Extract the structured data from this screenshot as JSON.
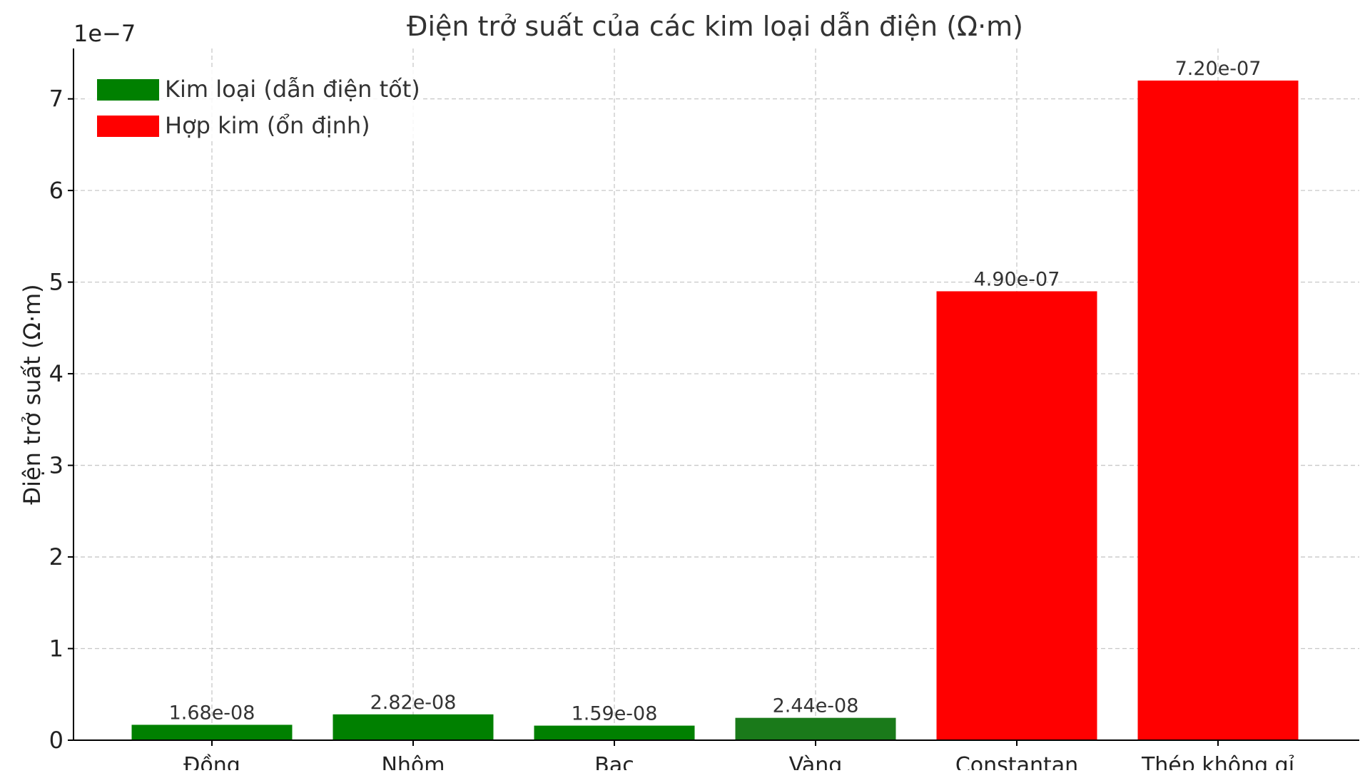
{
  "chart_data": {
    "type": "bar",
    "title": "Điện trở suất của các kim loại dẫn điện (Ω·m)",
    "xlabel": "",
    "ylabel": "Điện trở suất (Ω·m)",
    "y_multiplier_label": "1e−7",
    "ylim": [
      0,
      7.55e-07
    ],
    "y_ticks": [
      {
        "value": 0,
        "label": "0"
      },
      {
        "value": 1e-07,
        "label": "1"
      },
      {
        "value": 2e-07,
        "label": "2"
      },
      {
        "value": 3e-07,
        "label": "3"
      },
      {
        "value": 4e-07,
        "label": "4"
      },
      {
        "value": 5e-07,
        "label": "5"
      },
      {
        "value": 6e-07,
        "label": "6"
      },
      {
        "value": 7e-07,
        "label": "7"
      }
    ],
    "grid": true,
    "legend_placement": "top-left",
    "legend": [
      {
        "label": "Kim loại (dẫn điện tốt)",
        "color": "#008000"
      },
      {
        "label": "Hợp kim (ổn định)",
        "color": "#ff0000"
      }
    ],
    "categories": [
      "Đồng",
      "Nhôm",
      "Bạc",
      "Vàng",
      "Constantan",
      "Thép không gỉ"
    ],
    "values": [
      1.68e-08,
      2.82e-08,
      1.59e-08,
      2.44e-08,
      4.9e-07,
      7.2e-07
    ],
    "value_labels": [
      "1.68e-08",
      "2.82e-08",
      "1.59e-08",
      "2.44e-08",
      "4.90e-07",
      "7.20e-07"
    ],
    "bar_colors": [
      "#008000",
      "#008000",
      "#008000",
      "#1a7a1a",
      "#ff0000",
      "#ff0000"
    ]
  }
}
